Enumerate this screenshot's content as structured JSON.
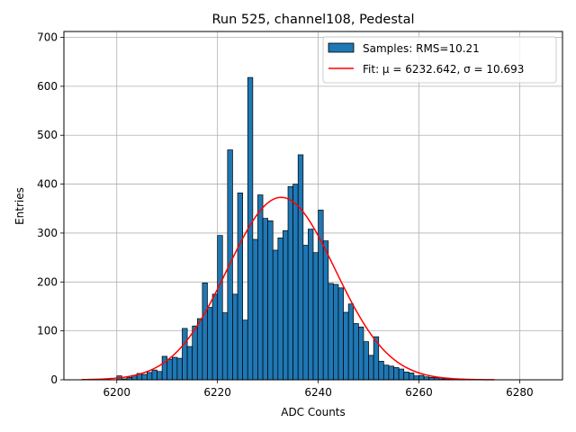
{
  "chart_data": {
    "type": "bar",
    "title": "Run 525, channel108, Pedestal",
    "xlabel": "ADC Counts",
    "ylabel": "Entries",
    "xlim": [
      6189.5,
      6288.5
    ],
    "ylim": [
      0,
      712
    ],
    "xticks": [
      6200,
      6220,
      6240,
      6260,
      6280
    ],
    "yticks": [
      0,
      100,
      200,
      300,
      400,
      500,
      600,
      700
    ],
    "grid": true,
    "legend_placement": "top-right",
    "bin_width": 1,
    "bin_start": 6200,
    "bar_color": "#1f77b4",
    "fit_color": "#ff0000",
    "series": [
      {
        "name": "Samples: RMS=10.21",
        "kind": "histogram",
        "values": [
          8,
          2,
          5,
          9,
          13,
          11,
          15,
          20,
          17,
          48,
          42,
          46,
          44,
          105,
          68,
          110,
          125,
          198,
          148,
          175,
          295,
          137,
          470,
          175,
          382,
          122,
          618,
          287,
          378,
          330,
          325,
          265,
          290,
          305,
          395,
          400,
          460,
          275,
          308,
          260,
          347,
          284,
          197,
          195,
          188,
          138,
          155,
          115,
          108,
          78,
          50,
          88,
          38,
          30,
          28,
          25,
          22,
          16,
          14,
          8,
          9,
          6,
          5,
          4,
          2,
          2,
          2,
          1,
          1,
          1,
          1
        ]
      },
      {
        "name": "Fit: μ = 6232.642, σ = 10.693",
        "kind": "gaussian",
        "mu": 6232.642,
        "sigma": 10.693,
        "amplitude": 373,
        "x_range": [
          6193,
          6275
        ]
      }
    ]
  }
}
